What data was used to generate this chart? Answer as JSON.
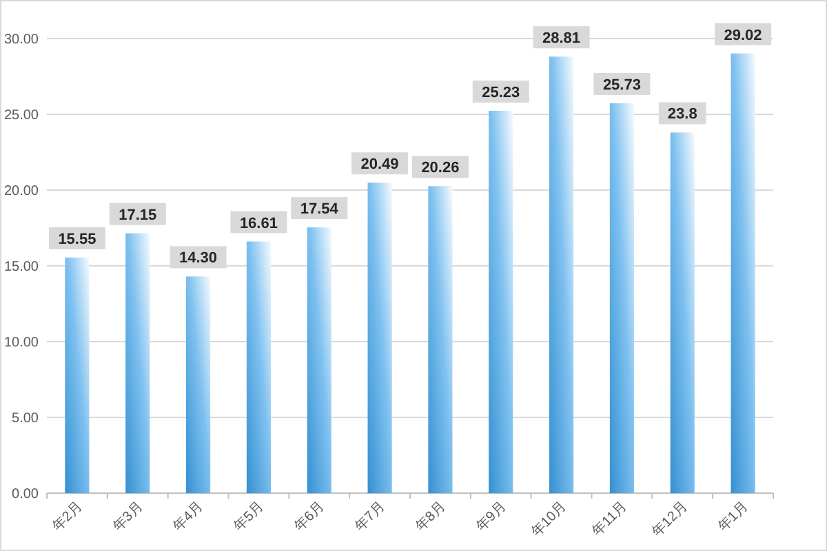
{
  "chart_data": {
    "type": "bar",
    "categories": [
      "年2月",
      "年3月",
      "年4月",
      "年5月",
      "年6月",
      "年7月",
      "年8月",
      "年9月",
      "年10月",
      "年11月",
      "年12月",
      "年1月"
    ],
    "values": [
      15.55,
      17.15,
      14.3,
      16.61,
      17.54,
      20.49,
      20.26,
      25.23,
      28.81,
      25.73,
      23.8,
      29.02
    ],
    "value_labels": [
      "15.55",
      "17.15",
      "14.30",
      "16.61",
      "17.54",
      "20.49",
      "20.26",
      "25.23",
      "28.81",
      "25.73",
      "23.8",
      "29.02"
    ],
    "color": "#3aa0e8",
    "ylim": [
      0,
      30
    ],
    "yticks": [
      {
        "value": 0,
        "label": "0.00"
      },
      {
        "value": 5,
        "label": "5.00"
      },
      {
        "value": 10,
        "label": "10.00"
      },
      {
        "value": 15,
        "label": "15.00"
      },
      {
        "value": 20,
        "label": "20.00"
      },
      {
        "value": 25,
        "label": "25.00"
      },
      {
        "value": 30,
        "label": "30.00"
      }
    ],
    "grid": "y"
  }
}
